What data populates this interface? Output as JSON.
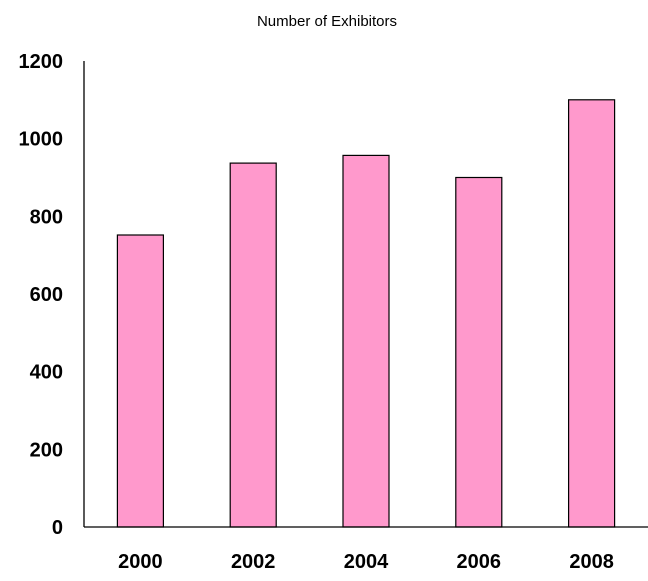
{
  "chart_data": {
    "type": "bar",
    "title": "Number of Exhibitors",
    "xlabel": "",
    "ylabel": "",
    "categories": [
      "2000",
      "2002",
      "2004",
      "2006",
      "2008"
    ],
    "values": [
      752,
      937,
      957,
      900,
      1100
    ],
    "ylim": [
      0,
      1200
    ],
    "yticks": [
      0,
      200,
      400,
      600,
      800,
      1000,
      1200
    ],
    "grid": false,
    "legend": "none",
    "bar_color": "#ff99cc",
    "bar_edge_color": "#000000"
  }
}
